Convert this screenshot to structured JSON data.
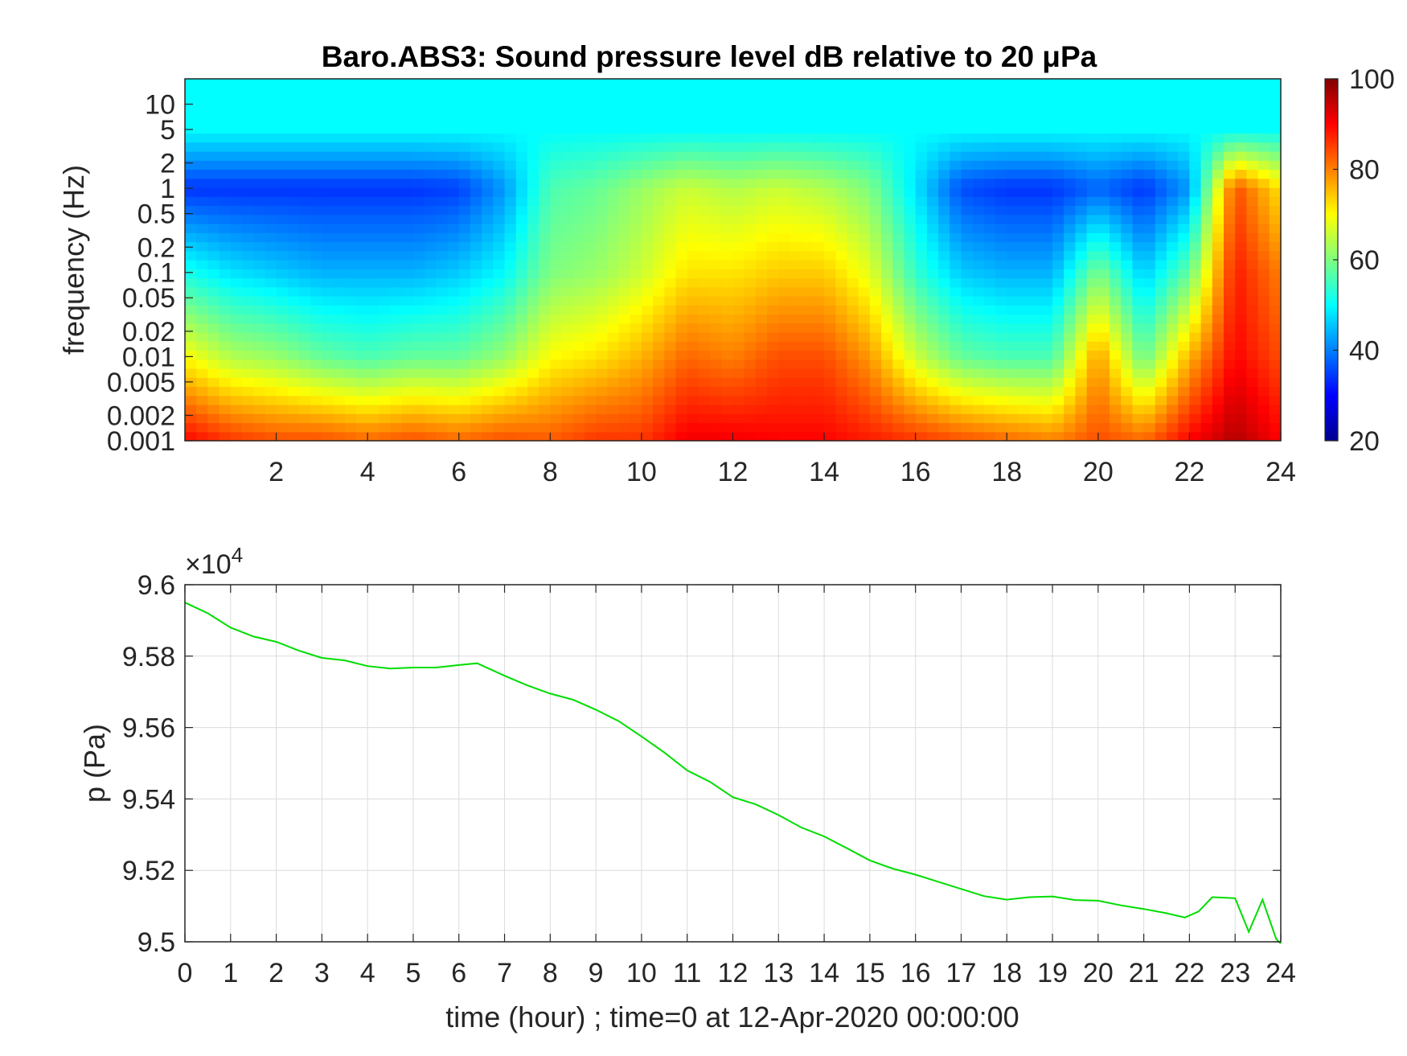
{
  "chart_data": [
    {
      "type": "heatmap",
      "title": "Baro.ABS3: Sound pressure level dB relative to 20 μPa",
      "xlabel": "",
      "ylabel": "frequency (Hz)",
      "x_ticks": [
        "2",
        "4",
        "6",
        "8",
        "10",
        "12",
        "14",
        "16",
        "18",
        "20",
        "22",
        "24"
      ],
      "y_ticks": [
        "0.001",
        "0.002",
        "0.005",
        "0.01",
        "0.02",
        "0.05",
        "0.1",
        "0.2",
        "0.5",
        "1",
        "2",
        "5",
        "10"
      ],
      "xlim": [
        0,
        24
      ],
      "ylim": [
        0.001,
        20
      ],
      "y_scale": "log",
      "colorbar": {
        "ticks": [
          "20",
          "40",
          "60",
          "80",
          "100"
        ],
        "range": [
          20,
          100
        ],
        "colormap": "jet"
      },
      "hour_centers": [
        0,
        1,
        2,
        3,
        4,
        5,
        6,
        7,
        8,
        9,
        10,
        11,
        12,
        13,
        14,
        15,
        16,
        17,
        18,
        19,
        20,
        21,
        22,
        23,
        24
      ],
      "high_freq_band": {
        "freq_range": [
          5,
          20
        ],
        "level_db": 50
      },
      "level_at_0_001Hz": [
        90,
        86,
        84,
        84,
        82,
        84,
        82,
        84,
        83,
        86,
        86,
        91,
        91,
        90,
        90,
        88,
        86,
        84,
        82,
        80,
        84,
        82,
        90,
        96,
        90
      ],
      "level_at_0_01Hz": [
        70,
        64,
        62,
        58,
        56,
        58,
        58,
        62,
        70,
        72,
        76,
        82,
        80,
        84,
        84,
        78,
        66,
        58,
        56,
        56,
        78,
        58,
        76,
        90,
        84
      ],
      "level_at_0_1Hz": [
        52,
        48,
        46,
        44,
        44,
        44,
        46,
        50,
        60,
        62,
        66,
        72,
        72,
        74,
        74,
        68,
        54,
        46,
        44,
        44,
        60,
        46,
        58,
        88,
        80
      ],
      "level_at_1Hz": [
        34,
        34,
        34,
        34,
        34,
        34,
        35,
        42,
        56,
        58,
        62,
        66,
        64,
        66,
        64,
        60,
        48,
        36,
        34,
        34,
        38,
        34,
        42,
        84,
        72
      ]
    },
    {
      "type": "line",
      "title": "",
      "xlabel": "time (hour) ; time=0 at 12-Apr-2020 00:00:00",
      "ylabel": "p (Pa)",
      "x_ticks": [
        "0",
        "1",
        "2",
        "3",
        "4",
        "5",
        "6",
        "7",
        "8",
        "9",
        "10",
        "11",
        "12",
        "13",
        "14",
        "15",
        "16",
        "17",
        "18",
        "19",
        "20",
        "21",
        "22",
        "23",
        "24"
      ],
      "y_ticks": [
        "9.5",
        "9.52",
        "9.54",
        "9.56",
        "9.58",
        "9.6"
      ],
      "multiplier": "×10",
      "multiplier_exp": "4",
      "xlim": [
        0,
        24
      ],
      "ylim": [
        95000,
        96000
      ],
      "grid": true,
      "series": [
        {
          "color": "#00dd00",
          "x": [
            0,
            0.5,
            1,
            1.5,
            2,
            2.5,
            3,
            3.5,
            4,
            4.5,
            5,
            5.5,
            6,
            6.4,
            7,
            7.5,
            8,
            8.5,
            9,
            9.5,
            10,
            10.5,
            11,
            11.5,
            12,
            12.5,
            13,
            13.5,
            14,
            14.5,
            15,
            15.5,
            16,
            16.5,
            17,
            17.5,
            18,
            18.5,
            19,
            19.5,
            20,
            20.5,
            21,
            21.5,
            21.9,
            22.2,
            22.5,
            23.0,
            23.3,
            23.6,
            23.9,
            24
          ],
          "y": [
            95950,
            95920,
            95880,
            95855,
            95840,
            95815,
            95795,
            95788,
            95772,
            95765,
            95768,
            95768,
            95775,
            95780,
            95745,
            95718,
            95695,
            95678,
            95650,
            95618,
            95575,
            95530,
            95480,
            95448,
            95405,
            95385,
            95355,
            95320,
            95295,
            95262,
            95228,
            95205,
            95188,
            95168,
            95148,
            95128,
            95118,
            95125,
            95127,
            95117,
            95115,
            95102,
            95092,
            95080,
            95068,
            95085,
            95125,
            95122,
            95028,
            95118,
            95008,
            94995
          ]
        }
      ]
    }
  ]
}
